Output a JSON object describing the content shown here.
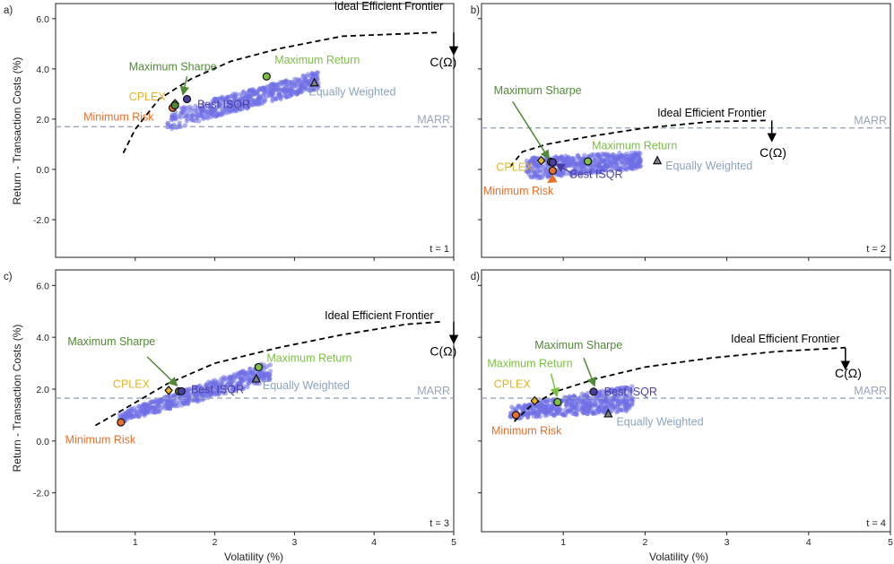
{
  "figure": {
    "ylabel": "Return - Transaction Costs (%)",
    "xlabel": "Volatility (%)",
    "marr_label": "MARR",
    "frontier_label": "Ideal Efficient Frontier",
    "cost_label": "C(Ω)",
    "colors": {
      "cloud": "#6f6fe6",
      "frontier": "#000000",
      "marr": "#9aa6bd",
      "min_risk": "#e8702a",
      "cplex": "#e6b422",
      "max_sharpe": "#4f8a35",
      "max_return": "#7ac043",
      "best_isqr": "#4a3fa0",
      "equal": "#8aa4bf"
    }
  },
  "chart_data": [
    {
      "type": "scatter",
      "panel": "a)",
      "time_label": "t = 1",
      "xlim": [
        0,
        5
      ],
      "ylim": [
        -3.5,
        6.6
      ],
      "xticks": [
        1,
        2,
        3,
        4,
        5
      ],
      "yticks": [
        6.0,
        4.0,
        2.0,
        0.0,
        -2.0
      ],
      "ytick_labels": [
        "6.0",
        "4.0",
        "2.0",
        "0.0",
        "-2.0"
      ],
      "show_xticklabels": false,
      "show_yticklabels": true,
      "marr": 1.7,
      "frontier": [
        [
          0.85,
          0.65
        ],
        [
          1.0,
          1.6
        ],
        [
          1.3,
          2.8
        ],
        [
          1.7,
          3.6
        ],
        [
          2.2,
          4.3
        ],
        [
          2.8,
          4.8
        ],
        [
          3.6,
          5.3
        ],
        [
          4.8,
          5.45
        ]
      ],
      "cloud": {
        "x_min": 1.4,
        "x_max": 3.3,
        "y_bottom_start": 1.55,
        "y_bottom_end": 3.2,
        "y_top_start": 2.3,
        "y_top_end": 3.9,
        "count": 520,
        "seed": 11
      },
      "points": [
        {
          "name": "Minimum Risk",
          "marker": "circle",
          "color_key": "min_risk",
          "x": 1.47,
          "y": 2.45
        },
        {
          "name": "CPLEX",
          "marker": "diamond",
          "color_key": "cplex",
          "x": 1.5,
          "y": 2.62
        },
        {
          "name": "Maximum Sharpe",
          "marker": "circle",
          "color_key": "max_sharpe",
          "x": 1.5,
          "y": 2.55
        },
        {
          "name": "Best ISQR",
          "marker": "circle",
          "color_key": "best_isqr",
          "x": 1.65,
          "y": 2.8
        },
        {
          "name": "Maximum Return",
          "marker": "circle",
          "color_key": "max_return",
          "x": 2.65,
          "y": 3.7
        },
        {
          "name": "Equally Weighted",
          "marker": "triangle",
          "color_key": "equal",
          "x": 3.25,
          "y": 3.45
        }
      ],
      "labels": [
        {
          "text": "Minimum Risk",
          "color_key": "min_risk",
          "x": 0.35,
          "y": 1.95
        },
        {
          "text": "CPLEX",
          "color_key": "cplex",
          "x": 0.92,
          "y": 2.75
        },
        {
          "text": "Maximum Sharpe",
          "color_key": "max_sharpe",
          "x": 0.92,
          "y": 3.95
        },
        {
          "text": "Best ISQR",
          "color_key": "best_isqr",
          "x": 1.78,
          "y": 2.45
        },
        {
          "text": "Maximum Return",
          "color_key": "max_return",
          "x": 2.75,
          "y": 4.2
        },
        {
          "text": "Equally Weighted",
          "color_key": "equal",
          "x": 3.18,
          "y": 2.95
        },
        {
          "text": "Ideal Efficient Frontier",
          "color_key": "frontier",
          "x": 3.5,
          "y": 6.35
        },
        {
          "text": "C(Ω)",
          "color_key": "frontier",
          "x": 4.7,
          "y": 4.1,
          "cost": true
        }
      ],
      "arrows": [
        {
          "from": [
            1.65,
            3.7
          ],
          "to": [
            1.6,
            3.0
          ],
          "color_key": "max_sharpe"
        },
        {
          "from": [
            5.0,
            5.45
          ],
          "to": [
            5.0,
            4.6
          ],
          "color_key": "frontier"
        }
      ]
    },
    {
      "type": "scatter",
      "panel": "b)",
      "time_label": "t = 2",
      "xlim": [
        0,
        5
      ],
      "ylim": [
        -3.5,
        6.6
      ],
      "xticks": [
        1,
        2,
        3,
        4,
        5
      ],
      "yticks": [
        6.0,
        4.0,
        2.0,
        0.0,
        -2.0
      ],
      "ytick_labels": [],
      "show_xticklabels": false,
      "show_yticklabels": false,
      "marr": 1.65,
      "frontier": [
        [
          0.35,
          0.1
        ],
        [
          0.5,
          0.7
        ],
        [
          0.8,
          1.0
        ],
        [
          1.3,
          1.3
        ],
        [
          2.0,
          1.65
        ],
        [
          2.8,
          1.9
        ],
        [
          3.5,
          1.95
        ]
      ],
      "cloud": {
        "x_min": 0.55,
        "x_max": 1.95,
        "y_bottom_start": -0.4,
        "y_bottom_end": 0.05,
        "y_top_start": 0.45,
        "y_top_end": 0.7,
        "count": 520,
        "seed": 22
      },
      "points": [
        {
          "name": "Minimum Risk",
          "marker": "circle",
          "color_key": "min_risk",
          "x": 0.87,
          "y": -0.05
        },
        {
          "name": "CPLEX",
          "marker": "diamond",
          "color_key": "cplex",
          "x": 0.73,
          "y": 0.35
        },
        {
          "name": "Maximum Sharpe",
          "marker": "circle",
          "color_key": "max_sharpe",
          "x": 0.85,
          "y": 0.3
        },
        {
          "name": "Best ISQR",
          "marker": "circle",
          "color_key": "best_isqr",
          "x": 0.87,
          "y": 0.28
        },
        {
          "name": "Maximum Return",
          "marker": "circle",
          "color_key": "max_return",
          "x": 1.3,
          "y": 0.32
        },
        {
          "name": "Equally Weighted",
          "marker": "triangle",
          "color_key": "equal",
          "x": 2.15,
          "y": 0.35
        }
      ],
      "labels": [
        {
          "text": "Minimum Risk",
          "color_key": "min_risk",
          "x": 0.02,
          "y": -1.0
        },
        {
          "text": "CPLEX",
          "color_key": "cplex",
          "x": 0.18,
          "y": -0.05
        },
        {
          "text": "Maximum Sharpe",
          "color_key": "max_sharpe",
          "x": 0.15,
          "y": 3.0
        },
        {
          "text": "Best ISQR",
          "color_key": "best_isqr",
          "x": 1.08,
          "y": -0.35
        },
        {
          "text": "Maximum Return",
          "color_key": "max_return",
          "x": 1.35,
          "y": 0.8
        },
        {
          "text": "Equally Weighted",
          "color_key": "equal",
          "x": 2.25,
          "y": 0.0
        },
        {
          "text": "Ideal Efficient Frontier",
          "color_key": "frontier",
          "x": 2.15,
          "y": 2.1
        },
        {
          "text": "C(Ω)",
          "color_key": "frontier",
          "x": 3.4,
          "y": 0.5,
          "cost": true
        }
      ],
      "arrows": [
        {
          "from": [
            0.38,
            2.7
          ],
          "to": [
            0.82,
            0.45
          ],
          "color_key": "max_sharpe"
        },
        {
          "from": [
            3.55,
            1.95
          ],
          "to": [
            3.55,
            1.15
          ],
          "color_key": "frontier"
        },
        {
          "from": [
            1.1,
            -0.15
          ],
          "to": [
            0.92,
            0.2
          ],
          "color_key": "best_isqr"
        },
        {
          "from": [
            0.9,
            -0.35
          ],
          "to": [
            0.82,
            -0.5
          ],
          "color_key": "min_risk"
        }
      ]
    },
    {
      "type": "scatter",
      "panel": "c)",
      "time_label": "t = 3",
      "xlim": [
        0,
        5
      ],
      "ylim": [
        -3.5,
        6.6
      ],
      "xticks": [
        1,
        2,
        3,
        4,
        5
      ],
      "yticks": [
        6.0,
        4.0,
        2.0,
        0.0,
        -2.0
      ],
      "ytick_labels": [
        "6.0",
        "4.0",
        "2.0",
        "0.0",
        "-2.0"
      ],
      "show_xticklabels": true,
      "show_yticklabels": true,
      "marr": 1.65,
      "frontier": [
        [
          0.5,
          0.6
        ],
        [
          0.9,
          1.3
        ],
        [
          1.4,
          2.2
        ],
        [
          2.0,
          3.0
        ],
        [
          2.8,
          3.6
        ],
        [
          3.6,
          4.1
        ],
        [
          4.4,
          4.5
        ],
        [
          4.85,
          4.6
        ]
      ],
      "cloud": {
        "x_min": 0.8,
        "x_max": 2.7,
        "y_bottom_start": 0.7,
        "y_bottom_end": 2.3,
        "y_top_start": 1.1,
        "y_top_end": 3.1,
        "count": 520,
        "seed": 33
      },
      "points": [
        {
          "name": "Minimum Risk",
          "marker": "circle",
          "color_key": "min_risk",
          "x": 0.82,
          "y": 0.72
        },
        {
          "name": "CPLEX",
          "marker": "diamond",
          "color_key": "cplex",
          "x": 1.42,
          "y": 1.95
        },
        {
          "name": "Maximum Sharpe",
          "marker": "circle",
          "color_key": "max_sharpe",
          "x": 1.55,
          "y": 1.92
        },
        {
          "name": "Best ISQR",
          "marker": "circle",
          "color_key": "best_isqr",
          "x": 1.58,
          "y": 1.92
        },
        {
          "name": "Maximum Return",
          "marker": "circle",
          "color_key": "max_return",
          "x": 2.55,
          "y": 2.85
        },
        {
          "name": "Equally Weighted",
          "marker": "triangle",
          "color_key": "equal",
          "x": 2.52,
          "y": 2.4
        }
      ],
      "labels": [
        {
          "text": "Minimum Risk",
          "color_key": "min_risk",
          "x": 0.12,
          "y": -0.1
        },
        {
          "text": "CPLEX",
          "color_key": "cplex",
          "x": 0.72,
          "y": 2.05
        },
        {
          "text": "Maximum Sharpe",
          "color_key": "max_sharpe",
          "x": 0.15,
          "y": 3.7
        },
        {
          "text": "Best ISQR",
          "color_key": "best_isqr",
          "x": 1.7,
          "y": 1.85
        },
        {
          "text": "Maximum Return",
          "color_key": "max_return",
          "x": 2.65,
          "y": 3.05
        },
        {
          "text": "Equally Weighted",
          "color_key": "equal",
          "x": 2.6,
          "y": 2.0
        },
        {
          "text": "Ideal Efficient Frontier",
          "color_key": "frontier",
          "x": 3.38,
          "y": 4.7
        },
        {
          "text": "C(Ω)",
          "color_key": "frontier",
          "x": 4.7,
          "y": 3.3,
          "cost": true
        }
      ],
      "arrows": [
        {
          "from": [
            1.15,
            3.25
          ],
          "to": [
            1.52,
            2.15
          ],
          "color_key": "max_sharpe"
        },
        {
          "from": [
            5.0,
            4.6
          ],
          "to": [
            5.0,
            3.8
          ],
          "color_key": "frontier"
        }
      ]
    },
    {
      "type": "scatter",
      "panel": "d)",
      "time_label": "t = 4",
      "xlim": [
        0,
        5
      ],
      "ylim": [
        -3.5,
        6.6
      ],
      "xticks": [
        1,
        2,
        3,
        4,
        5
      ],
      "yticks": [
        6.0,
        4.0,
        2.0,
        0.0,
        -2.0
      ],
      "ytick_labels": [],
      "show_xticklabels": true,
      "show_yticklabels": false,
      "marr": 1.65,
      "frontier": [
        [
          0.4,
          0.75
        ],
        [
          0.6,
          1.35
        ],
        [
          0.9,
          1.9
        ],
        [
          1.4,
          2.4
        ],
        [
          2.0,
          2.85
        ],
        [
          2.8,
          3.2
        ],
        [
          3.6,
          3.45
        ],
        [
          4.45,
          3.6
        ]
      ],
      "cloud": {
        "x_min": 0.35,
        "x_max": 1.85,
        "y_bottom_start": 0.85,
        "y_bottom_end": 1.15,
        "y_top_start": 1.35,
        "y_top_end": 2.15,
        "count": 520,
        "seed": 44
      },
      "points": [
        {
          "name": "Minimum Risk",
          "marker": "circle",
          "color_key": "min_risk",
          "x": 0.42,
          "y": 1.0
        },
        {
          "name": "CPLEX",
          "marker": "diamond",
          "color_key": "cplex",
          "x": 0.65,
          "y": 1.55
        },
        {
          "name": "Maximum Return",
          "marker": "circle",
          "color_key": "max_return",
          "x": 0.93,
          "y": 1.5
        },
        {
          "name": "Best ISQR",
          "marker": "circle",
          "color_key": "best_isqr",
          "x": 1.37,
          "y": 1.9
        },
        {
          "name": "Equally Weighted",
          "marker": "triangle",
          "color_key": "equal",
          "x": 1.55,
          "y": 1.05
        }
      ],
      "labels": [
        {
          "text": "Minimum Risk",
          "color_key": "min_risk",
          "x": 0.12,
          "y": 0.25
        },
        {
          "text": "CPLEX",
          "color_key": "cplex",
          "x": 0.15,
          "y": 2.05
        },
        {
          "text": "Maximum Return",
          "color_key": "max_return",
          "x": 0.07,
          "y": 2.85
        },
        {
          "text": "Maximum Sharpe",
          "color_key": "max_sharpe",
          "x": 0.65,
          "y": 3.55
        },
        {
          "text": "Best ISQR",
          "color_key": "best_isqr",
          "x": 1.5,
          "y": 1.75
        },
        {
          "text": "Equally Weighted",
          "color_key": "equal",
          "x": 1.65,
          "y": 0.6
        },
        {
          "text": "Ideal Efficient Frontier",
          "color_key": "frontier",
          "x": 3.05,
          "y": 3.8
        },
        {
          "text": "C(Ω)",
          "color_key": "frontier",
          "x": 4.32,
          "y": 2.45,
          "cost": true
        }
      ],
      "arrows": [
        {
          "from": [
            0.85,
            2.6
          ],
          "to": [
            0.92,
            1.75
          ],
          "color_key": "max_return"
        },
        {
          "from": [
            1.25,
            3.2
          ],
          "to": [
            1.38,
            2.15
          ],
          "color_key": "max_sharpe"
        },
        {
          "from": [
            4.45,
            3.6
          ],
          "to": [
            4.45,
            2.8
          ],
          "color_key": "frontier"
        }
      ]
    }
  ]
}
